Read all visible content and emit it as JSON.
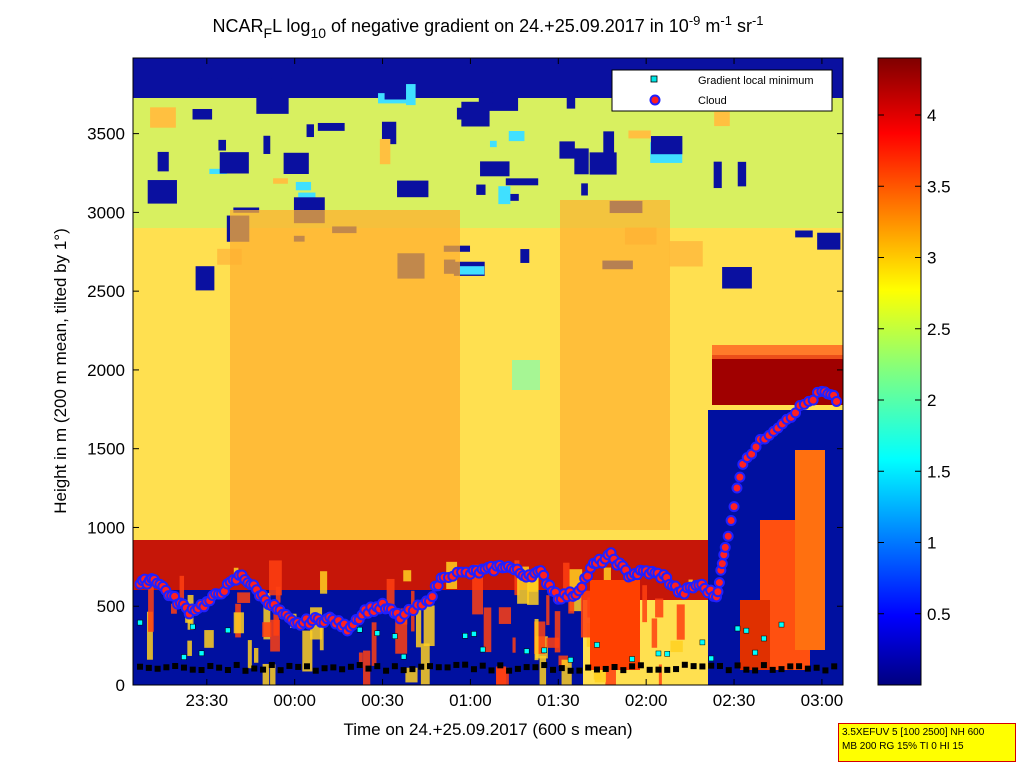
{
  "chart_data": {
    "type": "heatmap",
    "title": {
      "base": "NCAR",
      "sub1": "F",
      "mid": "L log",
      "sub2": "10",
      "rest": " of negative gradient on 24.+25.09.2017 in 10",
      "sup1": "-9",
      "unit1": " m",
      "sup2": "-1",
      "unit2": " sr",
      "sup3": "-1"
    },
    "xlabel": "Time on 24.+25.09.2017 (600 s mean)",
    "ylabel": "Height in m (200 m mean, tilted by 1°)",
    "x_ticks": [
      "23:30",
      "00:00",
      "00:30",
      "01:00",
      "01:30",
      "02:00",
      "02:30",
      "03:00"
    ],
    "x_range_hours": [
      23.08,
      27.12
    ],
    "y_ticks": [
      0,
      500,
      1000,
      1500,
      2000,
      2500,
      3000,
      3500
    ],
    "y_range": [
      0,
      3980
    ],
    "colorbar": {
      "ticks": [
        "0.5",
        "1",
        "1.5",
        "2",
        "2.5",
        "3",
        "3.5",
        "4"
      ],
      "range": [
        0,
        4.4
      ],
      "colormap": "jet"
    },
    "legend": {
      "placement": "top-right",
      "entries": [
        {
          "label": "Gradient local minimum",
          "marker": "square",
          "color": "#00e5e5"
        },
        {
          "label": "Cloud",
          "marker": "circle",
          "color": "#ff0000",
          "edge": "#0000ff"
        }
      ]
    },
    "cloud_base_series": [
      [
        23.12,
        640
      ],
      [
        23.2,
        680
      ],
      [
        23.3,
        560
      ],
      [
        23.4,
        470
      ],
      [
        23.5,
        520
      ],
      [
        23.6,
        610
      ],
      [
        23.7,
        700
      ],
      [
        23.8,
        580
      ],
      [
        23.9,
        480
      ],
      [
        24.0,
        380
      ],
      [
        24.1,
        410
      ],
      [
        24.2,
        420
      ],
      [
        24.3,
        360
      ],
      [
        24.4,
        470
      ],
      [
        24.5,
        500
      ],
      [
        24.6,
        430
      ],
      [
        24.75,
        520
      ],
      [
        24.85,
        700
      ],
      [
        25.0,
        710
      ],
      [
        25.1,
        730
      ],
      [
        25.2,
        760
      ],
      [
        25.3,
        700
      ],
      [
        25.4,
        710
      ],
      [
        25.5,
        560
      ],
      [
        25.6,
        580
      ],
      [
        25.7,
        760
      ],
      [
        25.8,
        820
      ],
      [
        25.9,
        700
      ],
      [
        26.0,
        720
      ],
      [
        26.1,
        690
      ],
      [
        26.2,
        580
      ],
      [
        26.3,
        640
      ],
      [
        26.4,
        560
      ],
      [
        26.45,
        870
      ],
      [
        26.55,
        1420
      ],
      [
        26.7,
        1600
      ],
      [
        26.85,
        1740
      ],
      [
        27.0,
        1860
      ],
      [
        27.1,
        1800
      ]
    ],
    "colors": {
      "low": "#00007f",
      "high": "#800000",
      "cloud_marker_fill": "#ff3030",
      "cloud_marker_edge": "#1010ff",
      "minimum_marker": "#00ffff"
    }
  },
  "info_box": {
    "line1": "3.5XEFUV 5 [100 2500] NH 600",
    "line2": "MB 200 RG 15% TI 0 HI 15"
  }
}
